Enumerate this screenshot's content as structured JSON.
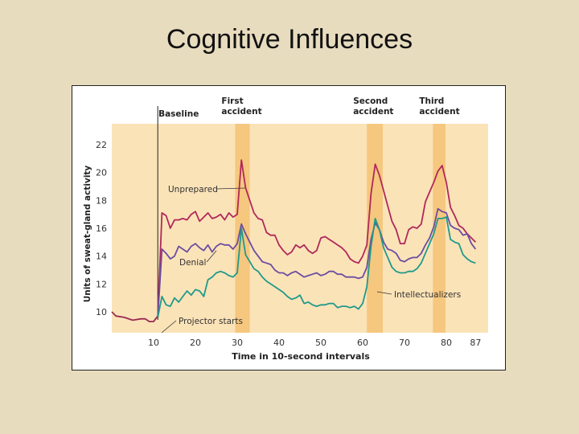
{
  "slide": {
    "title": "Cognitive Influences"
  },
  "chart_data": {
    "type": "line",
    "xlabel": "Time in 10-second intervals",
    "ylabel": "Units of sweat-gland activity",
    "xlim": [
      0,
      90
    ],
    "ylim": [
      8.5,
      23.5
    ],
    "xticks": [
      10,
      20,
      30,
      40,
      50,
      60,
      70,
      80,
      87
    ],
    "yticks": [
      10,
      12,
      14,
      16,
      18,
      20,
      22
    ],
    "bands": [
      {
        "label": "Baseline",
        "x": 11,
        "kind": "line"
      },
      {
        "label": "First accident",
        "x": 31.5,
        "x0": 29.5,
        "x1": 33
      },
      {
        "label": "Second accident",
        "x": 63,
        "x0": 61,
        "x1": 64.8
      },
      {
        "label": "Third accident",
        "x": 78.5,
        "x0": 76.8,
        "x1": 79.8
      }
    ],
    "baseline_series": {
      "name": "",
      "color": "#9a2a52",
      "x": [
        0,
        1,
        3,
        5,
        7,
        8,
        9,
        10,
        11
      ],
      "y": [
        10,
        9.7,
        9.6,
        9.4,
        9.5,
        9.5,
        9.3,
        9.3,
        9.7
      ]
    },
    "series": [
      {
        "name": "Unprepared",
        "color": "#b0285a",
        "x": [
          11,
          12,
          13,
          14,
          15,
          16,
          17,
          18,
          19,
          20,
          21,
          22,
          23,
          24,
          25,
          26,
          27,
          28,
          29,
          30,
          31,
          32,
          33,
          34,
          35,
          36,
          37,
          38,
          39,
          40,
          41,
          42,
          43,
          44,
          45,
          46,
          47,
          48,
          49,
          50,
          51,
          52,
          53,
          54,
          55,
          56,
          57,
          58,
          59,
          60,
          61,
          62,
          63,
          64,
          65,
          66,
          67,
          68,
          69,
          70,
          71,
          72,
          73,
          74,
          75,
          76,
          77,
          78,
          79,
          80,
          81,
          82,
          83,
          84,
          85,
          86,
          87
        ],
        "y": [
          9.6,
          17.1,
          16.9,
          16.0,
          16.6,
          16.6,
          16.7,
          16.6,
          17.0,
          17.2,
          16.5,
          16.8,
          17.1,
          16.7,
          16.8,
          17.0,
          16.6,
          17.1,
          16.8,
          17.0,
          20.9,
          18.9,
          18.0,
          17.1,
          16.7,
          16.6,
          15.7,
          15.5,
          15.5,
          14.8,
          14.4,
          14.1,
          14.3,
          14.8,
          14.6,
          14.8,
          14.4,
          14.2,
          14.4,
          15.3,
          15.4,
          15.2,
          15.0,
          14.8,
          14.6,
          14.3,
          13.8,
          13.6,
          13.5,
          14.0,
          14.8,
          18.5,
          20.6,
          19.8,
          18.7,
          17.6,
          16.5,
          15.9,
          14.9,
          14.9,
          15.9,
          16.1,
          16.0,
          16.3,
          17.9,
          18.6,
          19.3,
          20.1,
          20.5,
          19.3,
          17.5,
          16.9,
          16.2,
          16.0,
          15.6,
          15.3,
          15.0
        ]
      },
      {
        "name": "Denial",
        "color": "#6b4da0",
        "x": [
          11,
          12,
          13,
          14,
          15,
          16,
          17,
          18,
          19,
          20,
          21,
          22,
          23,
          24,
          25,
          26,
          27,
          28,
          29,
          30,
          31,
          32,
          33,
          34,
          35,
          36,
          37,
          38,
          39,
          40,
          41,
          42,
          43,
          44,
          45,
          46,
          47,
          48,
          49,
          50,
          51,
          52,
          53,
          54,
          55,
          56,
          57,
          58,
          59,
          60,
          61,
          62,
          63,
          64,
          65,
          66,
          67,
          68,
          69,
          70,
          71,
          72,
          73,
          74,
          75,
          76,
          77,
          78,
          79,
          80,
          81,
          82,
          83,
          84,
          85,
          86,
          87
        ],
        "y": [
          9.6,
          14.5,
          14.2,
          13.8,
          14.0,
          14.7,
          14.5,
          14.3,
          14.7,
          14.9,
          14.6,
          14.4,
          14.8,
          14.3,
          14.7,
          14.9,
          14.8,
          14.8,
          14.5,
          14.9,
          16.3,
          15.6,
          15.0,
          14.4,
          14.0,
          13.6,
          13.5,
          13.4,
          13.0,
          12.8,
          12.8,
          12.6,
          12.8,
          12.9,
          12.7,
          12.5,
          12.6,
          12.7,
          12.8,
          12.6,
          12.7,
          12.9,
          12.9,
          12.7,
          12.7,
          12.5,
          12.5,
          12.5,
          12.4,
          12.5,
          13.2,
          15.2,
          16.4,
          15.9,
          15.0,
          14.5,
          14.4,
          14.2,
          13.7,
          13.6,
          13.8,
          13.9,
          13.9,
          14.2,
          14.8,
          15.3,
          16.1,
          17.4,
          17.2,
          17.1,
          16.2,
          16.0,
          15.9,
          15.5,
          15.6,
          14.9,
          14.5
        ]
      },
      {
        "name": "Intellectualizers",
        "color": "#1f9a8a",
        "x": [
          11,
          12,
          13,
          14,
          15,
          16,
          17,
          18,
          19,
          20,
          21,
          22,
          23,
          24,
          25,
          26,
          27,
          28,
          29,
          30,
          31,
          32,
          33,
          34,
          35,
          36,
          37,
          38,
          39,
          40,
          41,
          42,
          43,
          44,
          45,
          46,
          47,
          48,
          49,
          50,
          51,
          52,
          53,
          54,
          55,
          56,
          57,
          58,
          59,
          60,
          61,
          62,
          63,
          64,
          65,
          66,
          67,
          68,
          69,
          70,
          71,
          72,
          73,
          74,
          75,
          76,
          77,
          78,
          79,
          80,
          81,
          82,
          83,
          84,
          85,
          86,
          87
        ],
        "y": [
          9.6,
          11.1,
          10.5,
          10.4,
          11.0,
          10.7,
          11.1,
          11.5,
          11.2,
          11.6,
          11.5,
          11.1,
          12.3,
          12.5,
          12.8,
          12.9,
          12.8,
          12.6,
          12.5,
          12.8,
          16.0,
          14.1,
          13.6,
          13.1,
          12.9,
          12.5,
          12.2,
          12.0,
          11.8,
          11.6,
          11.4,
          11.1,
          10.9,
          11.0,
          11.2,
          10.6,
          10.7,
          10.5,
          10.4,
          10.5,
          10.5,
          10.6,
          10.6,
          10.3,
          10.4,
          10.4,
          10.3,
          10.4,
          10.2,
          10.6,
          11.8,
          14.7,
          16.7,
          15.9,
          14.6,
          13.9,
          13.2,
          12.9,
          12.8,
          12.8,
          12.9,
          12.9,
          13.1,
          13.5,
          14.2,
          14.9,
          15.6,
          16.7,
          16.7,
          16.8,
          15.2,
          15.0,
          14.9,
          14.1,
          13.8,
          13.6,
          13.5
        ]
      }
    ],
    "annotations": [
      {
        "text": "Unprepared",
        "target": "Unprepared"
      },
      {
        "text": "Denial",
        "target": "Denial"
      },
      {
        "text": "Intellectualizers",
        "target": "Intellectualizers"
      },
      {
        "text": "Projector starts",
        "target": "projector"
      }
    ],
    "grid": false,
    "legend": "none"
  }
}
